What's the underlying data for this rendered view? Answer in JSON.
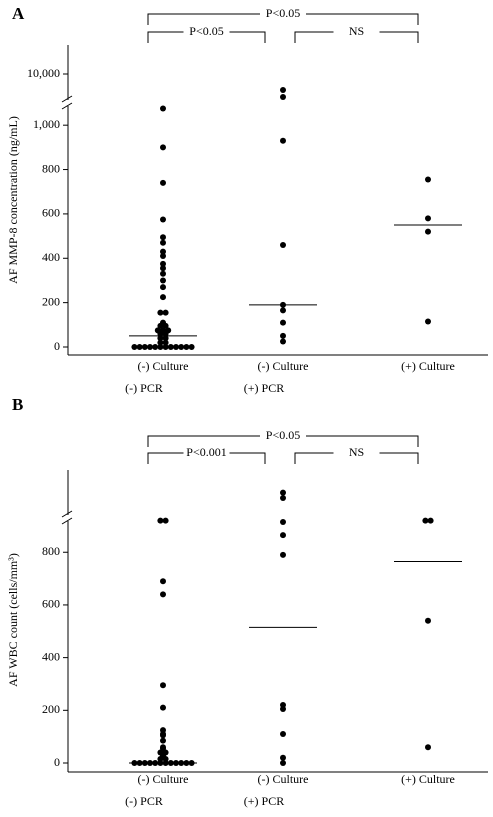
{
  "chart_data": [
    {
      "type": "strip",
      "panel": "A",
      "ylabel": "AF MMP-8 concentration (ng/mL)",
      "categories": [
        "(-) Culture",
        "(-) Culture",
        "(+) Culture"
      ],
      "category_sublabels": [
        "(-) PCR",
        "(+) PCR",
        null
      ],
      "values": [
        [
          1075,
          900,
          740,
          575,
          495,
          470,
          430,
          410,
          375,
          355,
          330,
          300,
          270,
          225,
          155,
          155,
          110,
          95,
          95,
          75,
          75,
          75,
          60,
          60,
          40,
          40,
          20,
          20,
          0,
          0,
          0,
          0,
          0,
          0,
          0,
          0,
          0,
          0,
          0,
          0
        ],
        [
          7240,
          6030,
          930,
          460,
          190,
          165,
          110,
          50,
          25
        ],
        [
          755,
          580,
          520,
          115
        ]
      ],
      "medians": [
        50,
        190,
        550
      ],
      "ylim": [
        0,
        1100
      ],
      "yticks": [
        0,
        200,
        400,
        600,
        800,
        {
          "value": 1000,
          "label": "1,000"
        }
      ],
      "ylim_upper": [
        5000,
        15000
      ],
      "yticks_upper": [
        {
          "value": 10000,
          "label": "10,000"
        }
      ],
      "annotations": [
        "P<0.05",
        "NS",
        "P<0.05"
      ],
      "color": "#000000"
    },
    {
      "type": "strip",
      "panel": "B",
      "ylabel": "AF WBC count (cells/mm³)",
      "categories": [
        "(-) Culture",
        "(-) Culture",
        "(+) Culture"
      ],
      "category_sublabels": [
        "(-) PCR",
        "(+) PCR",
        null
      ],
      "values": [
        [
          920,
          920,
          690,
          640,
          295,
          210,
          125,
          110,
          105,
          85,
          60,
          55,
          40,
          40,
          30,
          25,
          15,
          15,
          0,
          0,
          0,
          0,
          0,
          0,
          0,
          0,
          0,
          0,
          0,
          0
        ],
        [
          1025,
          1005,
          915,
          865,
          790,
          220,
          205,
          110,
          20,
          0
        ],
        [
          920,
          920,
          540,
          60
        ]
      ],
      "medians": [
        0,
        515,
        765
      ],
      "ylim": [
        0,
        930
      ],
      "yticks": [
        0,
        200,
        400,
        600,
        800
      ],
      "ylim_upper": [
        930,
        1110
      ],
      "annotations": [
        "P<0.001",
        "NS",
        "P<0.05"
      ],
      "color": "#000000"
    }
  ]
}
